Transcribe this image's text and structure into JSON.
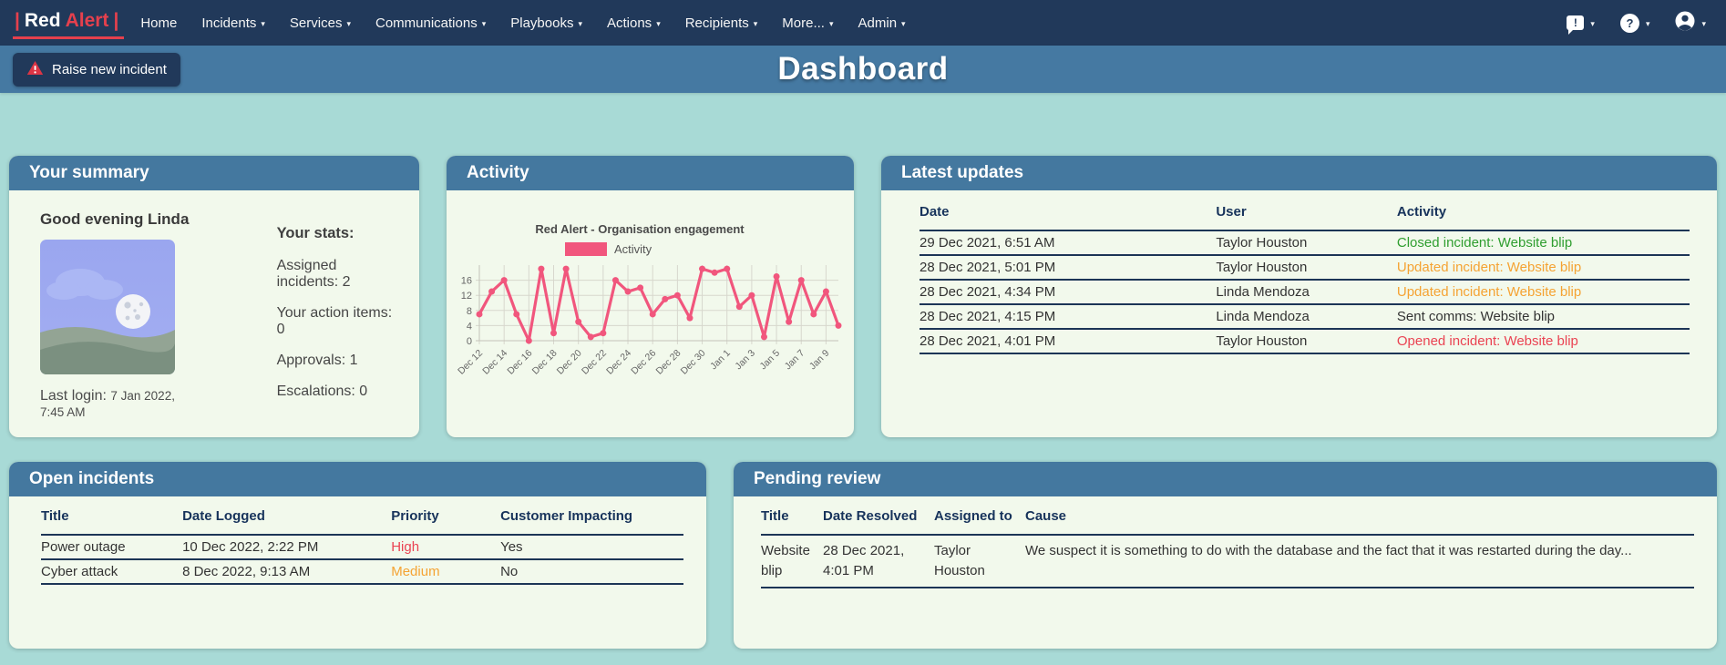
{
  "nav": {
    "brand": {
      "pipe_left": "|",
      "name_primary": "Red",
      "name_accent": "Alert",
      "pipe_right": "|"
    },
    "items": [
      {
        "label": "Home"
      },
      {
        "label": "Incidents"
      },
      {
        "label": "Services"
      },
      {
        "label": "Communications"
      },
      {
        "label": "Playbooks"
      },
      {
        "label": "Actions"
      },
      {
        "label": "Recipients"
      },
      {
        "label": "More..."
      },
      {
        "label": "Admin"
      }
    ],
    "icons": {
      "caret": "▾",
      "feedback_glyph": "!",
      "help_glyph": "?"
    }
  },
  "subheader": {
    "raise_incident_label": "Raise new incident",
    "page_title": "Dashboard"
  },
  "summary_card": {
    "title": "Your summary",
    "greeting": "Good evening Linda",
    "last_login_label": "Last login:",
    "last_login_value": "7 Jan 2022, 7:45 AM",
    "stats_heading": "Your stats:",
    "stats": [
      "Assigned incidents: 2",
      "Your action items: 0",
      "Approvals: 1",
      "Escalations: 0"
    ]
  },
  "activity_card": {
    "title": "Activity"
  },
  "chart_data": {
    "type": "line",
    "title": "Red Alert - Organisation engagement",
    "series": [
      {
        "name": "Activity",
        "color": "#f1567d"
      }
    ],
    "values": [
      7,
      13,
      16,
      7,
      0,
      19,
      2,
      19,
      5,
      1,
      2,
      16,
      13,
      14,
      7,
      11,
      12,
      6,
      19,
      18,
      19,
      9,
      12,
      1,
      17,
      5,
      16,
      7,
      13,
      4
    ],
    "tick_labels": [
      "Dec 12",
      "Dec 14",
      "Dec 16",
      "Dec 18",
      "Dec 20",
      "Dec 22",
      "Dec 24",
      "Dec 26",
      "Dec 28",
      "Dec 30",
      "Jan 1",
      "Jan 3",
      "Jan 5",
      "Jan 7",
      "Jan 9"
    ],
    "tick_every": 2,
    "yticks": [
      0,
      4,
      8,
      12,
      16
    ],
    "ylim": [
      0,
      20
    ],
    "grid": true,
    "legend_position": "top"
  },
  "updates_card": {
    "title": "Latest updates",
    "columns": [
      "Date",
      "User",
      "Activity"
    ],
    "rows": [
      {
        "date": "29 Dec 2021, 6:51 AM",
        "user": "Taylor Houston",
        "activity": "Closed incident: Website blip",
        "status": "closed"
      },
      {
        "date": "28 Dec 2021, 5:01 PM",
        "user": "Taylor Houston",
        "activity": "Updated incident: Website blip",
        "status": "updated"
      },
      {
        "date": "28 Dec 2021, 4:34 PM",
        "user": "Linda Mendoza",
        "activity": "Updated incident: Website blip",
        "status": "updated"
      },
      {
        "date": "28 Dec 2021, 4:15 PM",
        "user": "Linda Mendoza",
        "activity": "Sent comms: Website blip",
        "status": "neutral"
      },
      {
        "date": "28 Dec 2021, 4:01 PM",
        "user": "Taylor Houston",
        "activity": "Opened incident: Website blip",
        "status": "opened"
      }
    ]
  },
  "open_incidents_card": {
    "title": "Open incidents",
    "columns": [
      "Title",
      "Date Logged",
      "Priority",
      "Customer Impacting"
    ],
    "rows": [
      {
        "incident_title": "Power outage",
        "date_logged": "10 Dec 2022, 2:22 PM",
        "priority": "High",
        "priority_level": "high",
        "customer_impacting": "Yes"
      },
      {
        "incident_title": "Cyber attack",
        "date_logged": "8 Dec 2022, 9:13 AM",
        "priority": "Medium",
        "priority_level": "medium",
        "customer_impacting": "No"
      }
    ]
  },
  "pending_review_card": {
    "title": "Pending review",
    "columns": [
      "Title",
      "Date Resolved",
      "Assigned to",
      "Cause"
    ],
    "rows": [
      {
        "incident_title": "Website blip",
        "date_resolved": "28 Dec 2021, 4:01 PM",
        "assigned_to": "Taylor Houston",
        "cause": "We suspect it is something to do with the database and the fact that it was restarted during the day..."
      }
    ]
  },
  "colors": {
    "navbar": "#21395a",
    "accent_red": "#e5404d",
    "header_blue": "#4579a2",
    "background": "#a8dad6",
    "card_body": "#f2f9ec",
    "table_line": "#1c3556",
    "status_green": "#2f9e2f",
    "status_orange": "#f5a333",
    "status_red": "#ea4352",
    "chart_line": "#f1567d"
  }
}
